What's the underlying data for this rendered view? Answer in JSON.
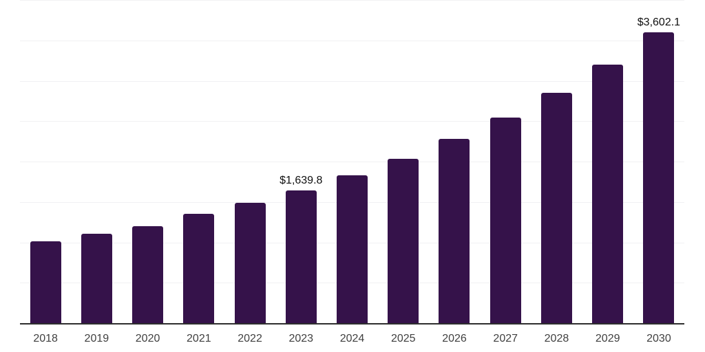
{
  "chart_data": {
    "type": "bar",
    "categories": [
      "2018",
      "2019",
      "2020",
      "2021",
      "2022",
      "2023",
      "2024",
      "2025",
      "2026",
      "2027",
      "2028",
      "2029",
      "2030"
    ],
    "values": [
      1012,
      1107,
      1198,
      1350,
      1487,
      1639.8,
      1829,
      2037,
      2283,
      2546,
      2849,
      3204,
      3602.1
    ],
    "data_labels": [
      null,
      null,
      null,
      null,
      null,
      "$1,639.8",
      null,
      null,
      null,
      null,
      null,
      null,
      "$3,602.1"
    ],
    "ylim": [
      0,
      4000
    ],
    "gridline_step": 500,
    "grid": "horizontal",
    "legend_position": "none",
    "colors": {
      "bar": "#35124a",
      "axis_line": "#2e2e2e",
      "gridline": "#f1f1f3",
      "tick_text": "#404040",
      "data_label_text": "#0f0f0f",
      "background": "#ffffff"
    }
  }
}
